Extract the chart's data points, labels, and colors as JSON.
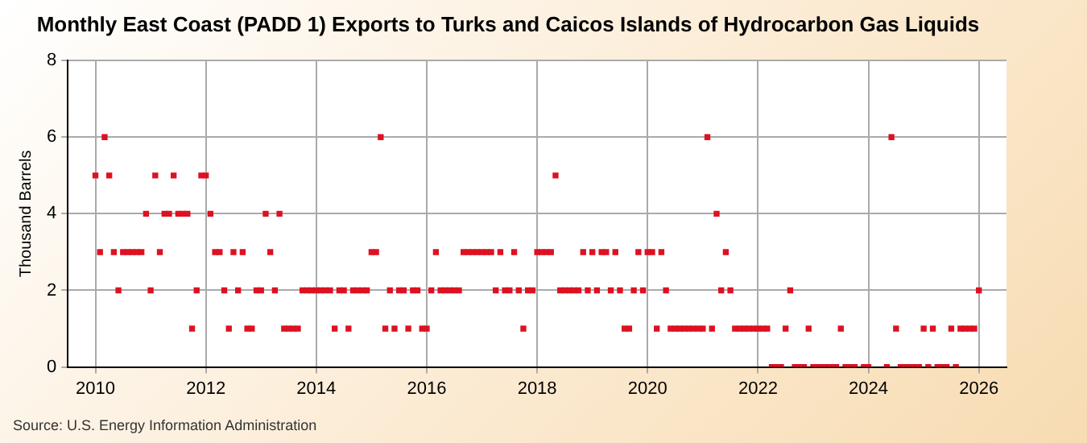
{
  "chart_data": {
    "type": "scatter",
    "title": "Monthly East Coast (PADD 1) Exports to Turks and Caicos Islands of Hydrocarbon Gas Liquids",
    "ylabel": "Thousand Barrels",
    "annotations": [
      "Source: U.S. Energy Information Administration"
    ],
    "x": [
      "2010-01",
      "2010-02",
      "2010-03",
      "2010-04",
      "2010-05",
      "2010-06",
      "2010-07",
      "2010-08",
      "2010-09",
      "2010-10",
      "2010-11",
      "2010-12",
      "2011-01",
      "2011-02",
      "2011-03",
      "2011-04",
      "2011-05",
      "2011-06",
      "2011-07",
      "2011-08",
      "2011-09",
      "2011-10",
      "2011-11",
      "2011-12",
      "2012-01",
      "2012-02",
      "2012-03",
      "2012-04",
      "2012-05",
      "2012-06",
      "2012-07",
      "2012-08",
      "2012-09",
      "2012-10",
      "2012-11",
      "2012-12",
      "2013-01",
      "2013-02",
      "2013-03",
      "2013-04",
      "2013-05",
      "2013-06",
      "2013-07",
      "2013-08",
      "2013-09",
      "2013-10",
      "2013-11",
      "2013-12",
      "2014-01",
      "2014-02",
      "2014-03",
      "2014-04",
      "2014-05",
      "2014-06",
      "2014-07",
      "2014-08",
      "2014-09",
      "2014-10",
      "2014-11",
      "2014-12",
      "2015-01",
      "2015-02",
      "2015-03",
      "2015-04",
      "2015-05",
      "2015-06",
      "2015-07",
      "2015-08",
      "2015-09",
      "2015-10",
      "2015-11",
      "2015-12",
      "2016-01",
      "2016-02",
      "2016-03",
      "2016-04",
      "2016-05",
      "2016-06",
      "2016-07",
      "2016-08",
      "2016-09",
      "2016-10",
      "2016-11",
      "2016-12",
      "2017-01",
      "2017-02",
      "2017-03",
      "2017-04",
      "2017-05",
      "2017-06",
      "2017-07",
      "2017-08",
      "2017-09",
      "2017-10",
      "2017-11",
      "2017-12",
      "2018-01",
      "2018-02",
      "2018-03",
      "2018-04",
      "2018-05",
      "2018-06",
      "2018-07",
      "2018-08",
      "2018-09",
      "2018-10",
      "2018-11",
      "2018-12",
      "2019-01",
      "2019-02",
      "2019-03",
      "2019-04",
      "2019-05",
      "2019-06",
      "2019-07",
      "2019-08",
      "2019-09",
      "2019-10",
      "2019-11",
      "2019-12",
      "2020-01",
      "2020-02",
      "2020-03",
      "2020-04",
      "2020-05",
      "2020-06",
      "2020-07",
      "2020-08",
      "2020-09",
      "2020-10",
      "2020-11",
      "2020-12",
      "2021-01",
      "2021-02",
      "2021-03",
      "2021-04",
      "2021-05",
      "2021-06",
      "2021-07",
      "2021-08",
      "2021-09",
      "2021-10",
      "2021-11",
      "2021-12",
      "2022-01",
      "2022-02",
      "2022-03",
      "2022-04",
      "2022-05",
      "2022-06",
      "2022-07",
      "2022-08",
      "2022-09",
      "2022-10",
      "2022-11",
      "2022-12",
      "2023-01",
      "2023-02",
      "2023-03",
      "2023-04",
      "2023-05",
      "2023-06",
      "2023-07",
      "2023-08",
      "2023-09",
      "2023-10",
      "2023-11",
      "2023-12",
      "2024-01",
      "2024-02",
      "2024-03",
      "2024-04",
      "2024-05",
      "2024-06",
      "2024-07",
      "2024-08",
      "2024-09",
      "2024-10",
      "2024-11",
      "2024-12",
      "2025-01",
      "2025-02",
      "2025-03",
      "2025-04",
      "2025-05",
      "2025-06",
      "2025-07",
      "2025-08",
      "2025-09",
      "2025-10",
      "2025-11",
      "2025-12",
      "2026-01"
    ],
    "values": [
      5,
      3,
      6,
      5,
      3,
      2,
      3,
      3,
      3,
      3,
      3,
      4,
      2,
      5,
      3,
      4,
      4,
      5,
      4,
      4,
      4,
      1,
      2,
      5,
      5,
      4,
      3,
      3,
      2,
      1,
      3,
      2,
      3,
      1,
      1,
      2,
      2,
      4,
      3,
      2,
      4,
      1,
      1,
      1,
      1,
      2,
      2,
      2,
      2,
      2,
      2,
      2,
      1,
      2,
      2,
      1,
      2,
      2,
      2,
      2,
      3,
      3,
      6,
      1,
      2,
      1,
      2,
      2,
      1,
      2,
      2,
      1,
      1,
      2,
      3,
      2,
      2,
      2,
      2,
      2,
      3,
      3,
      3,
      3,
      3,
      3,
      3,
      2,
      3,
      2,
      2,
      3,
      2,
      1,
      2,
      2,
      3,
      3,
      3,
      3,
      5,
      2,
      2,
      2,
      2,
      2,
      3,
      2,
      3,
      2,
      3,
      3,
      2,
      3,
      2,
      1,
      1,
      2,
      3,
      2,
      3,
      3,
      1,
      3,
      2,
      1,
      1,
      1,
      1,
      1,
      1,
      1,
      1,
      6,
      1,
      4,
      2,
      3,
      2,
      1,
      1,
      1,
      1,
      1,
      1,
      1,
      1,
      0,
      0,
      0,
      1,
      2,
      0,
      0,
      0,
      1,
      0,
      0,
      0,
      0,
      0,
      0,
      1,
      0,
      0,
      0,
      null,
      0,
      0,
      null,
      null,
      null,
      0,
      6,
      1,
      0,
      0,
      0,
      0,
      0,
      1,
      0,
      1,
      0,
      0,
      0,
      1,
      0,
      1,
      1,
      1,
      1,
      2
    ],
    "color": "#dd1122",
    "marker": "square",
    "xlim": [
      "2009-07",
      "2026-07"
    ],
    "xticks": [
      "2010",
      "2012",
      "2014",
      "2016",
      "2018",
      "2020",
      "2022",
      "2024",
      "2026"
    ],
    "ylim": [
      0,
      8
    ],
    "yticks": [
      0,
      2,
      4,
      6,
      8
    ],
    "grid": true,
    "legend": false
  }
}
